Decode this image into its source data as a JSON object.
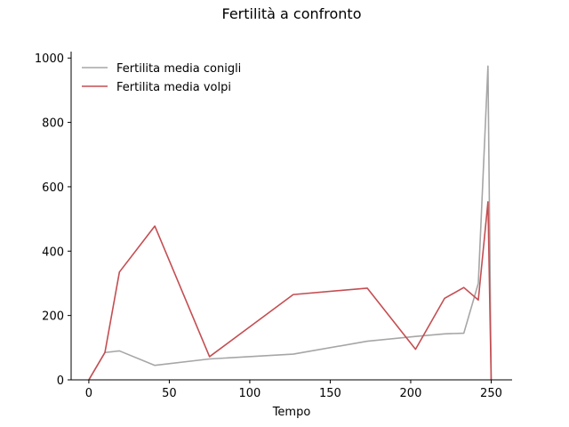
{
  "chart_data": {
    "type": "line",
    "title": "Fertilità a confronto",
    "xlabel": "Tempo",
    "ylabel": "",
    "xlim": [
      -11,
      263
    ],
    "ylim": [
      0,
      1020
    ],
    "xticks": [
      0,
      50,
      100,
      150,
      200,
      250
    ],
    "yticks": [
      0,
      200,
      400,
      600,
      800,
      1000
    ],
    "grid": false,
    "legend_position": "top-left",
    "series": [
      {
        "name": "Fertilita media conigli",
        "color": "#a6a6a6",
        "x": [
          0,
          10,
          19,
          41,
          75,
          127,
          173,
          203,
          221,
          233,
          242,
          248,
          250
        ],
        "y": [
          0,
          85,
          90,
          45,
          65,
          80,
          120,
          135,
          143,
          145,
          300,
          975,
          0
        ]
      },
      {
        "name": "Fertilita media volpi",
        "color": "#c44e52",
        "x": [
          0,
          10,
          19,
          41,
          75,
          127,
          173,
          203,
          221,
          233,
          242,
          248,
          250
        ],
        "y": [
          0,
          85,
          335,
          478,
          72,
          265,
          285,
          95,
          253,
          287,
          248,
          553,
          0
        ]
      }
    ]
  }
}
